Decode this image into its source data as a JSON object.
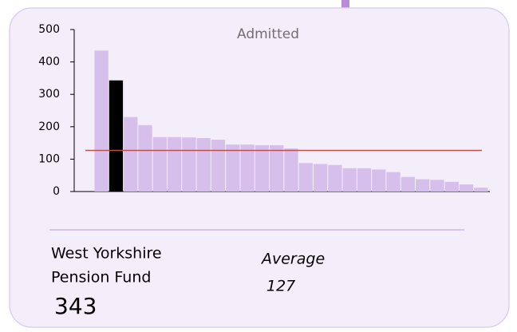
{
  "chart_data": {
    "type": "bar",
    "title": "Admitted",
    "values": [
      435,
      343,
      230,
      205,
      168,
      168,
      167,
      165,
      160,
      145,
      145,
      143,
      143,
      133,
      88,
      85,
      82,
      72,
      72,
      68,
      60,
      45,
      38,
      36,
      30,
      22,
      12
    ],
    "color": "#d7bfec",
    "highlight": {
      "index": 1,
      "color": "#000000",
      "label_lines": [
        "West Yorkshire",
        "Pension Fund"
      ]
    },
    "average": {
      "label": "Average",
      "value": 127,
      "color": "#c0504d"
    },
    "ylim": [
      0,
      500
    ],
    "yticks": [
      0,
      100,
      200,
      300,
      400,
      500
    ],
    "grid": false
  }
}
